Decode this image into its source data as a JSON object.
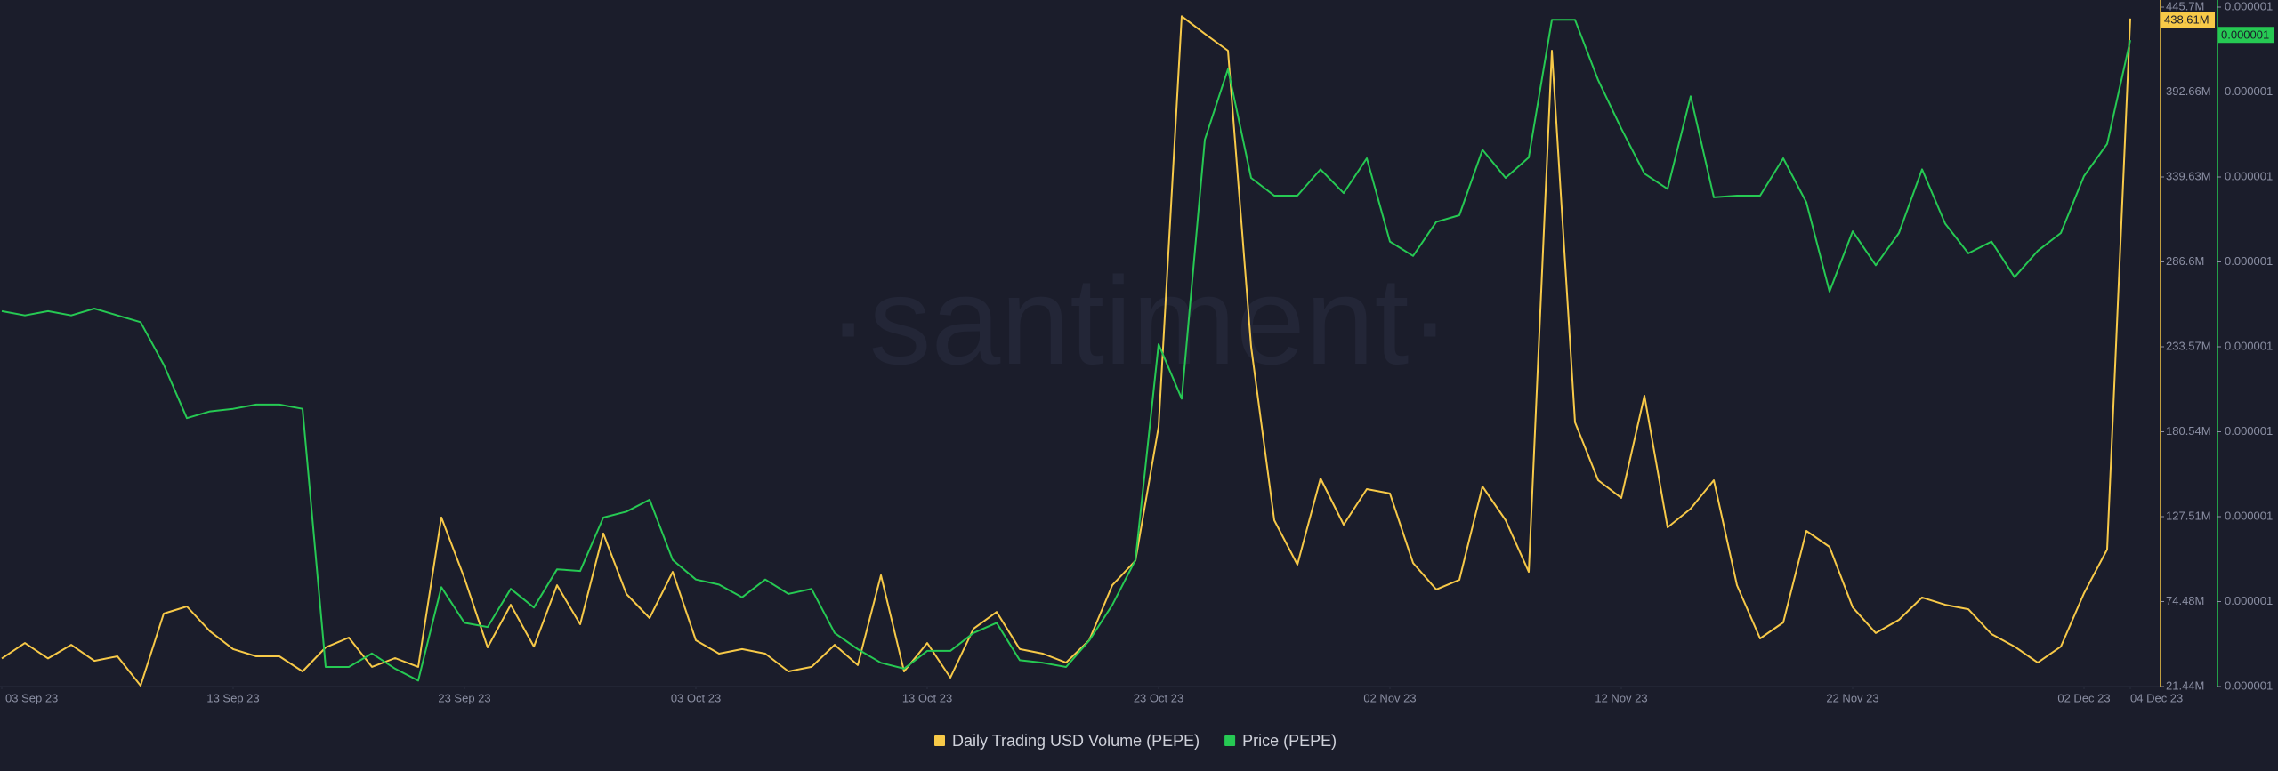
{
  "chart_data": {
    "type": "line",
    "watermark": "·santiment·",
    "x": [
      "2023-09-03",
      "2023-09-04",
      "2023-09-05",
      "2023-09-06",
      "2023-09-07",
      "2023-09-08",
      "2023-09-09",
      "2023-09-10",
      "2023-09-11",
      "2023-09-12",
      "2023-09-13",
      "2023-09-14",
      "2023-09-15",
      "2023-09-16",
      "2023-09-17",
      "2023-09-18",
      "2023-09-19",
      "2023-09-20",
      "2023-09-21",
      "2023-09-22",
      "2023-09-23",
      "2023-09-24",
      "2023-09-25",
      "2023-09-26",
      "2023-09-27",
      "2023-09-28",
      "2023-09-29",
      "2023-09-30",
      "2023-10-01",
      "2023-10-02",
      "2023-10-03",
      "2023-10-04",
      "2023-10-05",
      "2023-10-06",
      "2023-10-07",
      "2023-10-08",
      "2023-10-09",
      "2023-10-10",
      "2023-10-11",
      "2023-10-12",
      "2023-10-13",
      "2023-10-14",
      "2023-10-15",
      "2023-10-16",
      "2023-10-17",
      "2023-10-18",
      "2023-10-19",
      "2023-10-20",
      "2023-10-21",
      "2023-10-22",
      "2023-10-23",
      "2023-10-24",
      "2023-10-25",
      "2023-10-26",
      "2023-10-27",
      "2023-10-28",
      "2023-10-29",
      "2023-10-30",
      "2023-10-31",
      "2023-11-01",
      "2023-11-02",
      "2023-11-03",
      "2023-11-04",
      "2023-11-05",
      "2023-11-06",
      "2023-11-07",
      "2023-11-08",
      "2023-11-09",
      "2023-11-10",
      "2023-11-11",
      "2023-11-12",
      "2023-11-13",
      "2023-11-14",
      "2023-11-15",
      "2023-11-16",
      "2023-11-17",
      "2023-11-18",
      "2023-11-19",
      "2023-11-20",
      "2023-11-21",
      "2023-11-22",
      "2023-11-23",
      "2023-11-24",
      "2023-11-25",
      "2023-11-26",
      "2023-11-27",
      "2023-11-28",
      "2023-11-29",
      "2023-11-30",
      "2023-12-01",
      "2023-12-02",
      "2023-12-03",
      "2023-12-04"
    ],
    "xticks": [
      {
        "value": "2023-09-03",
        "label": "03 Sep 23"
      },
      {
        "value": "2023-09-13",
        "label": "13 Sep 23"
      },
      {
        "value": "2023-09-23",
        "label": "23 Sep 23"
      },
      {
        "value": "2023-10-03",
        "label": "03 Oct 23"
      },
      {
        "value": "2023-10-13",
        "label": "13 Oct 23"
      },
      {
        "value": "2023-10-23",
        "label": "23 Oct 23"
      },
      {
        "value": "2023-11-02",
        "label": "02 Nov 23"
      },
      {
        "value": "2023-11-12",
        "label": "12 Nov 23"
      },
      {
        "value": "2023-11-22",
        "label": "22 Nov 23"
      },
      {
        "value": "2023-12-02",
        "label": "02 Dec 23"
      },
      {
        "value": "2023-12-04",
        "label": "04 Dec 23"
      }
    ],
    "ylim": [
      21.44,
      445.7
    ],
    "yticks": [
      {
        "value": 21.44,
        "label": "21.44M"
      },
      {
        "value": 74.48,
        "label": "74.48M"
      },
      {
        "value": 127.51,
        "label": "127.51M"
      },
      {
        "value": 180.54,
        "label": "180.54M"
      },
      {
        "value": 233.57,
        "label": "233.57M"
      },
      {
        "value": 286.6,
        "label": "286.6M"
      },
      {
        "value": 339.63,
        "label": "339.63M"
      },
      {
        "value": 392.66,
        "label": "392.66M"
      },
      {
        "value": 445.7,
        "label": "445.7M"
      }
    ],
    "y2lim": [
      6e-07,
      1.4e-06
    ],
    "y2ticks": [
      {
        "value": 6e-07,
        "label": "0.000001"
      },
      {
        "value": 7e-07,
        "label": "0.000001"
      },
      {
        "value": 8e-07,
        "label": "0.000001"
      },
      {
        "value": 9e-07,
        "label": "0.000001"
      },
      {
        "value": 1e-06,
        "label": "0.000001"
      },
      {
        "value": 1.1e-06,
        "label": "0.000001"
      },
      {
        "value": 1.2e-06,
        "label": "0.000001"
      },
      {
        "value": 1.3e-06,
        "label": "0.000001"
      },
      {
        "value": 1.4e-06,
        "label": "0.000001"
      }
    ],
    "series": [
      {
        "name": "Daily Trading USD Volume (PEPE)",
        "color": "#f7c948",
        "axis": "y",
        "values": [
          39,
          48.6,
          39,
          47.5,
          37.5,
          40.3,
          22,
          67,
          71.4,
          55.9,
          44.8,
          40.3,
          40.3,
          30.9,
          45.9,
          52,
          33.7,
          39.2,
          33.7,
          127,
          89,
          45.9,
          72.5,
          46.4,
          84.7,
          60.3,
          117,
          79.2,
          64.2,
          93,
          50.3,
          42,
          44.8,
          42,
          30.9,
          33.7,
          47.5,
          34.8,
          90.9,
          30.9,
          48.6,
          27,
          57.5,
          68,
          44.8,
          42,
          36.4,
          50.3,
          84.7,
          100,
          183.6,
          440,
          429,
          418.5,
          233.6,
          125.3,
          97.5,
          151.4,
          122.5,
          144.7,
          142,
          98.6,
          82,
          88,
          146.4,
          125.3,
          93,
          418.5,
          186.4,
          150.3,
          139.2,
          203,
          120.8,
          132.5,
          150.3,
          84.7,
          51.4,
          61.4,
          118.6,
          108.6,
          70.9,
          54.8,
          63.1,
          77,
          72.5,
          69.7,
          54.2,
          46.4,
          36.4,
          46.4,
          79.7,
          107,
          438.61
        ],
        "value_labels": [
          null,
          null,
          null,
          null,
          null,
          null,
          null,
          null,
          null,
          null,
          null,
          null,
          null,
          null,
          null,
          null,
          null,
          null,
          null,
          null,
          null,
          null,
          null,
          null,
          null,
          null,
          null,
          null,
          null,
          null,
          null,
          null,
          null,
          null,
          null,
          null,
          null,
          null,
          null,
          null,
          null,
          null,
          null,
          null,
          null,
          null,
          null,
          null,
          null,
          null,
          null,
          null,
          null,
          null,
          null,
          null,
          null,
          null,
          null,
          null,
          null,
          null,
          null,
          null,
          null,
          null,
          null,
          null,
          null,
          null,
          null,
          null,
          null,
          null,
          null,
          null,
          null,
          null,
          null,
          null,
          null,
          null,
          null,
          null,
          null,
          null,
          null,
          null,
          null,
          null,
          null,
          null,
          "438.61M"
        ]
      },
      {
        "name": "Price (PEPE)",
        "color": "#26c953",
        "axis": "y2",
        "values": [
          1.042e-06,
          1.037e-06,
          1.042e-06,
          1.037e-06,
          1.045e-06,
          1.037e-06,
          1.029e-06,
          9.79e-07,
          9.16e-07,
          9.24e-07,
          9.27e-07,
          9.32e-07,
          9.32e-07,
          9.27e-07,
          6.23e-07,
          6.23e-07,
          6.39e-07,
          6.21e-07,
          6.07e-07,
          7.17e-07,
          6.75e-07,
          6.7e-07,
          7.15e-07,
          6.93e-07,
          7.38e-07,
          7.36e-07,
          7.99e-07,
          8.06e-07,
          8.2e-07,
          7.49e-07,
          7.26e-07,
          7.2e-07,
          7.05e-07,
          7.26e-07,
          7.09e-07,
          7.15e-07,
          6.63e-07,
          6.44e-07,
          6.28e-07,
          6.21e-07,
          6.42e-07,
          6.42e-07,
          6.63e-07,
          6.75e-07,
          6.31e-07,
          6.28e-07,
          6.23e-07,
          6.54e-07,
          6.96e-07,
          7.49e-07,
          1.003e-06,
          9.39e-07,
          1.244e-06,
          1.327e-06,
          1.199e-06,
          1.178e-06,
          1.178e-06,
          1.209e-06,
          1.181e-06,
          1.222e-06,
          1.124e-06,
          1.107e-06,
          1.147e-06,
          1.155e-06,
          1.232e-06,
          1.199e-06,
          1.223e-06,
          1.385e-06,
          1.385e-06,
          1.314e-06,
          1.257e-06,
          1.204e-06,
          1.186e-06,
          1.295e-06,
          1.176e-06,
          1.178e-06,
          1.178e-06,
          1.222e-06,
          1.17e-06,
          1.065e-06,
          1.136e-06,
          1.096e-06,
          1.134e-06,
          1.209e-06,
          1.145e-06,
          1.11e-06,
          1.124e-06,
          1.082e-06,
          1.113e-06,
          1.134e-06,
          1.201e-06,
          1.239e-06,
          1.361e-06
        ],
        "value_labels": [
          null,
          null,
          null,
          null,
          null,
          null,
          null,
          null,
          null,
          null,
          null,
          null,
          null,
          null,
          null,
          null,
          null,
          null,
          null,
          null,
          null,
          null,
          null,
          null,
          null,
          null,
          null,
          null,
          null,
          null,
          null,
          null,
          null,
          null,
          null,
          null,
          null,
          null,
          null,
          null,
          null,
          null,
          null,
          null,
          null,
          null,
          null,
          null,
          null,
          null,
          null,
          null,
          null,
          null,
          null,
          null,
          null,
          null,
          null,
          null,
          null,
          null,
          null,
          null,
          null,
          null,
          null,
          null,
          null,
          null,
          null,
          null,
          null,
          null,
          null,
          null,
          null,
          null,
          null,
          null,
          null,
          null,
          null,
          null,
          null,
          null,
          null,
          null,
          null,
          null,
          null,
          null,
          "0.000001"
        ]
      }
    ]
  }
}
